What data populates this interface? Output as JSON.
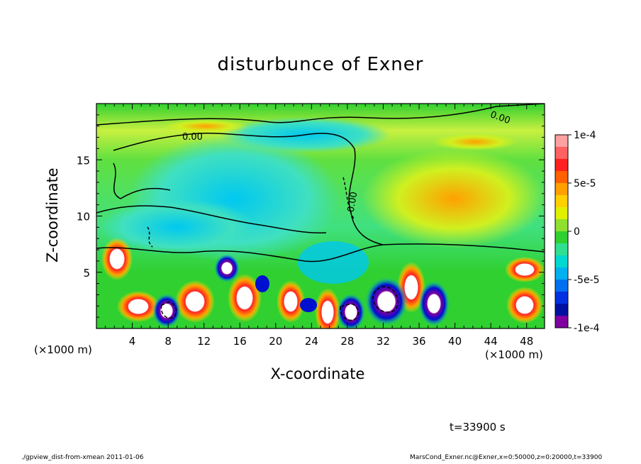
{
  "chart_data": {
    "type": "heatmap",
    "title": "disturbunce of Exner",
    "xlabel": "X-coordinate",
    "ylabel": "Z-coordinate",
    "x_unit": "(×1000 m)",
    "xlim": [
      0,
      50
    ],
    "ylim": [
      0,
      20
    ],
    "x_ticks": [
      "4",
      "8",
      "12",
      "16",
      "20",
      "24",
      "28",
      "32",
      "36",
      "40",
      "44",
      "48"
    ],
    "y_ticks": [
      "5",
      "10",
      "15"
    ],
    "colorbar_ticks": [
      "1e-4",
      "5e-5",
      "0",
      "-5e-5",
      "-1e-4"
    ],
    "colorbar_range": [
      -0.0001,
      0.0001
    ],
    "contour_labels": [
      "0.00",
      "0.00",
      "0.00"
    ],
    "colors": {
      "max": "#ffa0a0",
      "high": "#ff2020",
      "mid_high": "#ffa000",
      "zero": "#30d030",
      "mid_low": "#00c8f0",
      "low": "#0010d0",
      "min": "#8000a0"
    }
  },
  "annotations": {
    "time": "t=33900 s",
    "footer_left": "./gpview_dist-from-xmean  2011-01-06",
    "footer_right": "MarsCond_Exner.nc@Exner,x=0:50000,z=0:20000,t=33900"
  }
}
